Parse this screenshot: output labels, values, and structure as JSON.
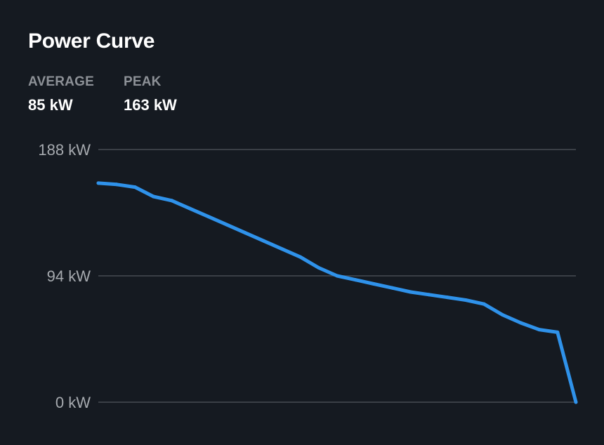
{
  "title": "Power Curve",
  "stats": [
    {
      "label": "AVERAGE",
      "value": "85 kW"
    },
    {
      "label": "PEAK",
      "value": "163 kW"
    }
  ],
  "colors": {
    "background": "#151a21",
    "line": "#2f92ea",
    "grid": "#3a3f46"
  },
  "chart_data": {
    "type": "line",
    "title": "Power Curve",
    "xlabel": "",
    "ylabel": "",
    "ylim": [
      0,
      188
    ],
    "y_ticks": [
      {
        "value": 188,
        "label": "188 kW"
      },
      {
        "value": 94,
        "label": "94 kW"
      },
      {
        "value": 0,
        "label": "0 kW"
      }
    ],
    "grid": true,
    "legend": "none",
    "series": [
      {
        "values": [
          163,
          162,
          160,
          153,
          150,
          144,
          138,
          132,
          126,
          120,
          114,
          108,
          100,
          94,
          91,
          88,
          85,
          82,
          80,
          78,
          76,
          73,
          65,
          59,
          54,
          52,
          0
        ]
      }
    ]
  }
}
